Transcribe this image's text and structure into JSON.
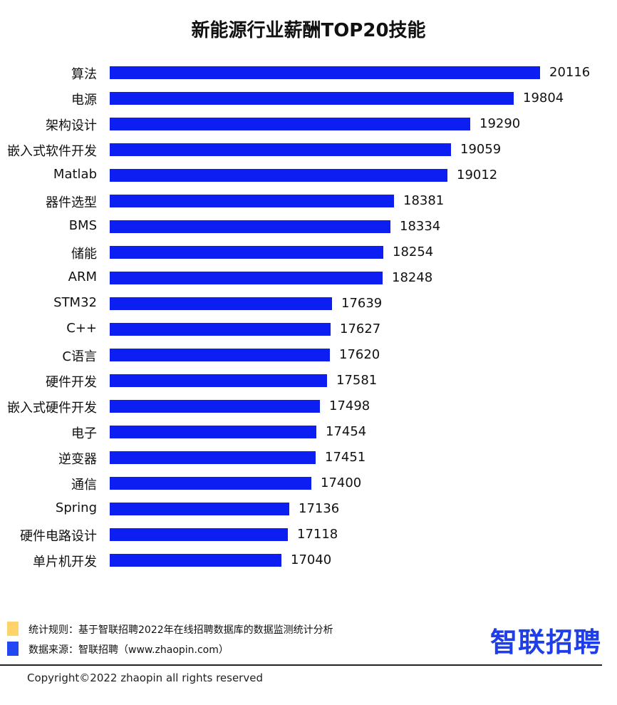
{
  "header": {
    "title": "新能源行业薪酬TOP20技能"
  },
  "chart_data": {
    "type": "bar",
    "orientation": "horizontal",
    "title": "新能源行业薪酬TOP20技能",
    "xlabel": "",
    "ylabel": "",
    "xlim": [
      15000,
      20116
    ],
    "grid": false,
    "bar_color": "#0d1ef2",
    "categories": [
      "算法",
      "电源",
      "架构设计",
      "嵌入式软件开发",
      "Matlab",
      "器件选型",
      "BMS",
      "储能",
      "ARM",
      "STM32",
      "C++",
      "C语言",
      "硬件开发",
      "嵌入式硬件开发",
      "电子",
      "逆变器",
      "通信",
      "Spring",
      "硬件电路设计",
      "单片机开发"
    ],
    "values": [
      20116,
      19804,
      19290,
      19059,
      19012,
      18381,
      18334,
      18254,
      18248,
      17639,
      17627,
      17620,
      17581,
      17498,
      17454,
      17451,
      17400,
      17136,
      17118,
      17040
    ]
  },
  "legend": [
    {
      "color": "#ffd36b",
      "text": "统计规则：基于智联招聘2022年在线招聘数据库的数据监测统计分析"
    },
    {
      "color": "#2347f0",
      "text": "数据来源：智联招聘（www.zhaopin.com）"
    }
  ],
  "logo": {
    "text": "智联招聘",
    "color": "#1d3ee8"
  },
  "footer": {
    "copyright": "Copyright©2022 zhaopin all rights reserved"
  }
}
